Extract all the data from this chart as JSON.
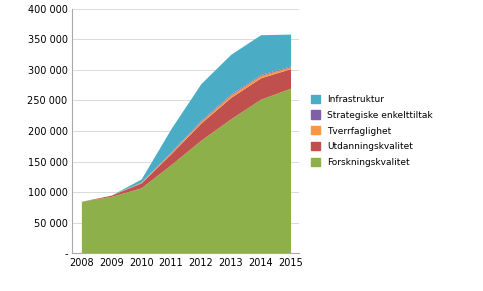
{
  "years": [
    2008,
    2009,
    2010,
    2011,
    2012,
    2013,
    2014,
    2015
  ],
  "series": {
    "Forskningskvalitet": [
      85000,
      93000,
      107000,
      145000,
      185000,
      220000,
      252000,
      270000
    ],
    "Utdanningskvalitet": [
      0,
      2000,
      8000,
      18000,
      28000,
      35000,
      35000,
      32000
    ],
    "Tverrfaglighet": [
      0,
      0,
      1000,
      2000,
      3000,
      4000,
      4000,
      3000
    ],
    "Strategiske enkelttiltak": [
      0,
      0,
      500,
      1000,
      1500,
      1500,
      1500,
      1500
    ],
    "Infrastruktur": [
      0,
      0,
      5000,
      38000,
      60000,
      65000,
      65000,
      52000
    ]
  },
  "colors": {
    "Forskningskvalitet": "#8DB04B",
    "Utdanningskvalitet": "#C0504D",
    "Tverrfaglighet": "#F79646",
    "Strategiske enkelttiltak": "#7F5FA8",
    "Infrastruktur": "#4BACC6"
  },
  "ylim": [
    0,
    400000
  ],
  "yticks": [
    0,
    50000,
    100000,
    150000,
    200000,
    250000,
    300000,
    350000,
    400000
  ],
  "ytick_labels": [
    "-",
    "50 000",
    "100 000",
    "150 000",
    "200 000",
    "250 000",
    "300 000",
    "350 000",
    "400 000"
  ],
  "background_color": "#FFFFFF",
  "stack_order": [
    "Forskningskvalitet",
    "Utdanningskvalitet",
    "Tverrfaglighet",
    "Strategiske enkelttiltak",
    "Infrastruktur"
  ],
  "legend_order": [
    "Infrastruktur",
    "Strategiske enkelttiltak",
    "Tverrfaglighet",
    "Utdanningskvalitet",
    "Forskningskvalitet"
  ]
}
